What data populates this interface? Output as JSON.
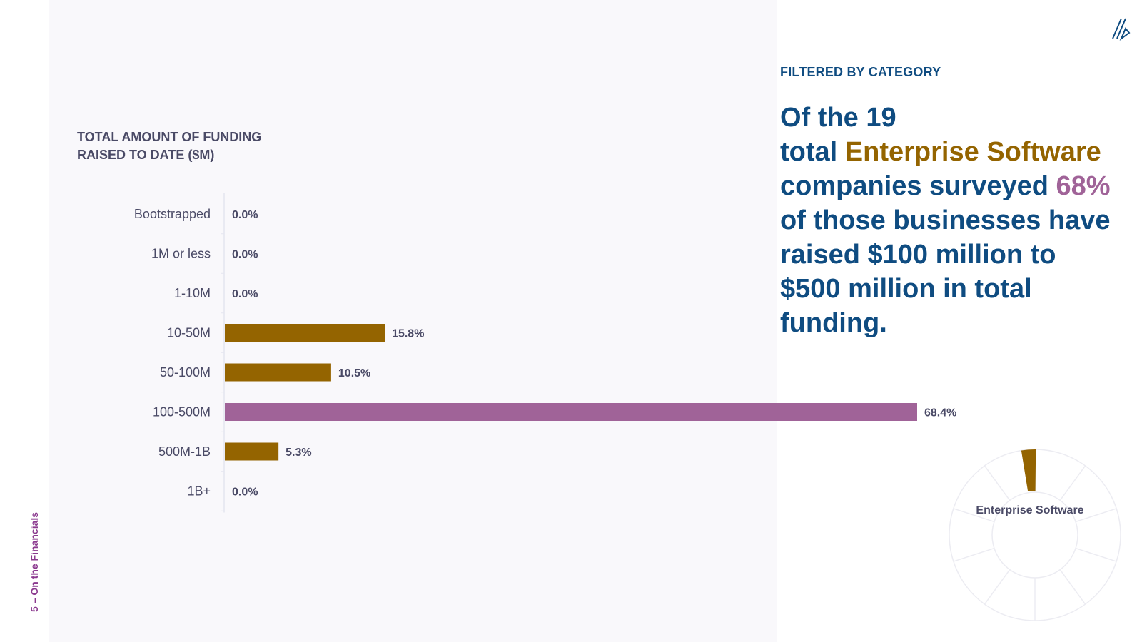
{
  "side_label": "5 – On the Financials",
  "filter": {
    "label": "FILTERED BY CATEGORY"
  },
  "headline": {
    "part1": "Of the 19",
    "part2": "total ",
    "highlight_category": "Enterprise Software",
    "part3": " companies surveyed ",
    "highlight_percent": "68%",
    "part4": " of those businesses have raised $100 million to $500 million in total funding."
  },
  "donut": {
    "label": "Enterprise Software",
    "highlight_color": "#946400",
    "segments": 10,
    "highlighted_segment": 0
  },
  "colors": {
    "gold": "#946400",
    "purple": "#a06398",
    "navy": "#0f4c81",
    "text": "#4a4a66"
  },
  "chart_data": {
    "type": "bar",
    "orientation": "horizontal",
    "title": "TOTAL AMOUNT OF FUNDING RAISED TO DATE ($M)",
    "categories": [
      "Bootstrapped",
      "1M or less",
      "1-10M",
      "10-50M",
      "50-100M",
      "100-500M",
      "500M-1B",
      "1B+"
    ],
    "values": [
      0.0,
      0.0,
      0.0,
      15.8,
      10.5,
      68.4,
      5.3,
      0.0
    ],
    "value_labels": [
      "0.0%",
      "0.0%",
      "0.0%",
      "15.8%",
      "10.5%",
      "68.4%",
      "5.3%",
      "0.0%"
    ],
    "highlight_index": 5,
    "bar_color": "#946400",
    "highlight_color": "#a06398",
    "xlim": [
      0,
      70
    ],
    "grid": false
  }
}
